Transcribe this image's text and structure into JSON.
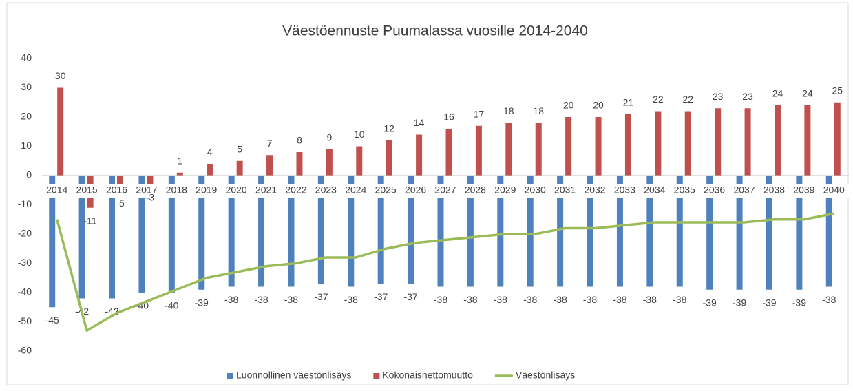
{
  "chart_data": {
    "type": "bar",
    "title": "Väestöennuste Puumalassa vuosille 2014-2040",
    "categories": [
      "2014",
      "2015",
      "2016",
      "2017",
      "2018",
      "2019",
      "2020",
      "2021",
      "2022",
      "2023",
      "2024",
      "2025",
      "2026",
      "2027",
      "2028",
      "2029",
      "2030",
      "2031",
      "2032",
      "2033",
      "2034",
      "2035",
      "2036",
      "2037",
      "2038",
      "2039",
      "2040"
    ],
    "series": [
      {
        "name": "Luonnollinen väestönlisäys",
        "type": "bar",
        "color": "#4f81bd",
        "data_labels": true,
        "values": [
          -45,
          -42,
          -42,
          -40,
          -40,
          -39,
          -38,
          -38,
          -38,
          -37,
          -38,
          -37,
          -37,
          -38,
          -38,
          -38,
          -38,
          -38,
          -38,
          -38,
          -38,
          -38,
          -39,
          -39,
          -39,
          -39,
          -38
        ]
      },
      {
        "name": "Kokonaisnettomuutto",
        "type": "bar",
        "color": "#c0504d",
        "data_labels": true,
        "values": [
          30,
          -11,
          -5,
          -3,
          1,
          4,
          5,
          7,
          8,
          9,
          10,
          12,
          14,
          16,
          17,
          18,
          18,
          20,
          20,
          21,
          22,
          22,
          23,
          23,
          24,
          24,
          25
        ]
      },
      {
        "name": "Väestönlisäys",
        "type": "line",
        "color": "#9bbb59",
        "data_labels": false,
        "values": [
          -15,
          -53,
          -47,
          -43,
          -39,
          -35,
          -33,
          -31,
          -30,
          -28,
          -28,
          -25,
          -23,
          -22,
          -21,
          -20,
          -20,
          -18,
          -18,
          -17,
          -16,
          -16,
          -16,
          -16,
          -15,
          -15,
          -13
        ]
      }
    ],
    "ylim": [
      -60,
      40
    ],
    "yticks": [
      -60,
      -50,
      -40,
      -30,
      -20,
      -10,
      0,
      10,
      20,
      30,
      40
    ],
    "grid": false,
    "legend": "bottom"
  }
}
